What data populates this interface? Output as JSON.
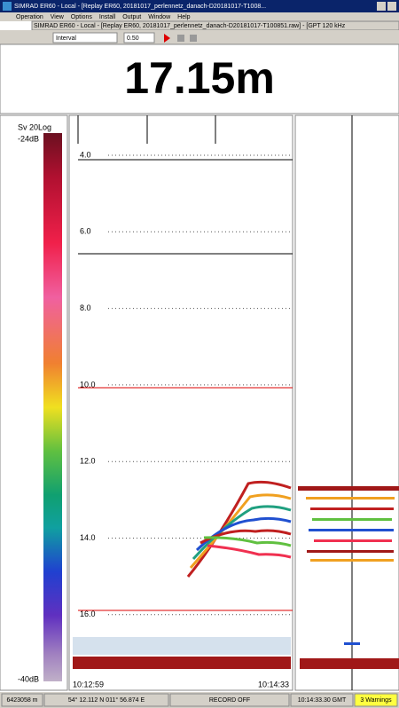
{
  "window": {
    "title": "SIMRAD ER60 - Local - [Replay ER60, 20181017_perlennetz_danach-D20181017-T1008...",
    "menu": [
      "Operation",
      "View",
      "Options",
      "Install",
      "Output",
      "Window",
      "Help"
    ],
    "inner_title": "SIMRAD ER60 - Local - [Replay ER60, 20181017_perlennetz_danach-D20181017-T100851.raw] - [GPT 120 kHz",
    "toolbar": {
      "mode": "Interval",
      "interval": "0.50"
    }
  },
  "depth_display": "17.15m",
  "color_scale": {
    "title": "Sv 20Log",
    "top": "-24dB",
    "bottom": "-40dB"
  },
  "echogram": {
    "depth_labels": [
      "4.0",
      "6.0",
      "8.0",
      "10.0",
      "12.0",
      "14.0",
      "16.0"
    ],
    "time_start": "10:12:59",
    "time_end": "10:14:33"
  },
  "status_bar": [
    "6423058 m",
    "54° 12.112 N  011° 56.874 E",
    "RECORD OFF",
    "10:14:33.30 GMT",
    "3 Warnings"
  ]
}
